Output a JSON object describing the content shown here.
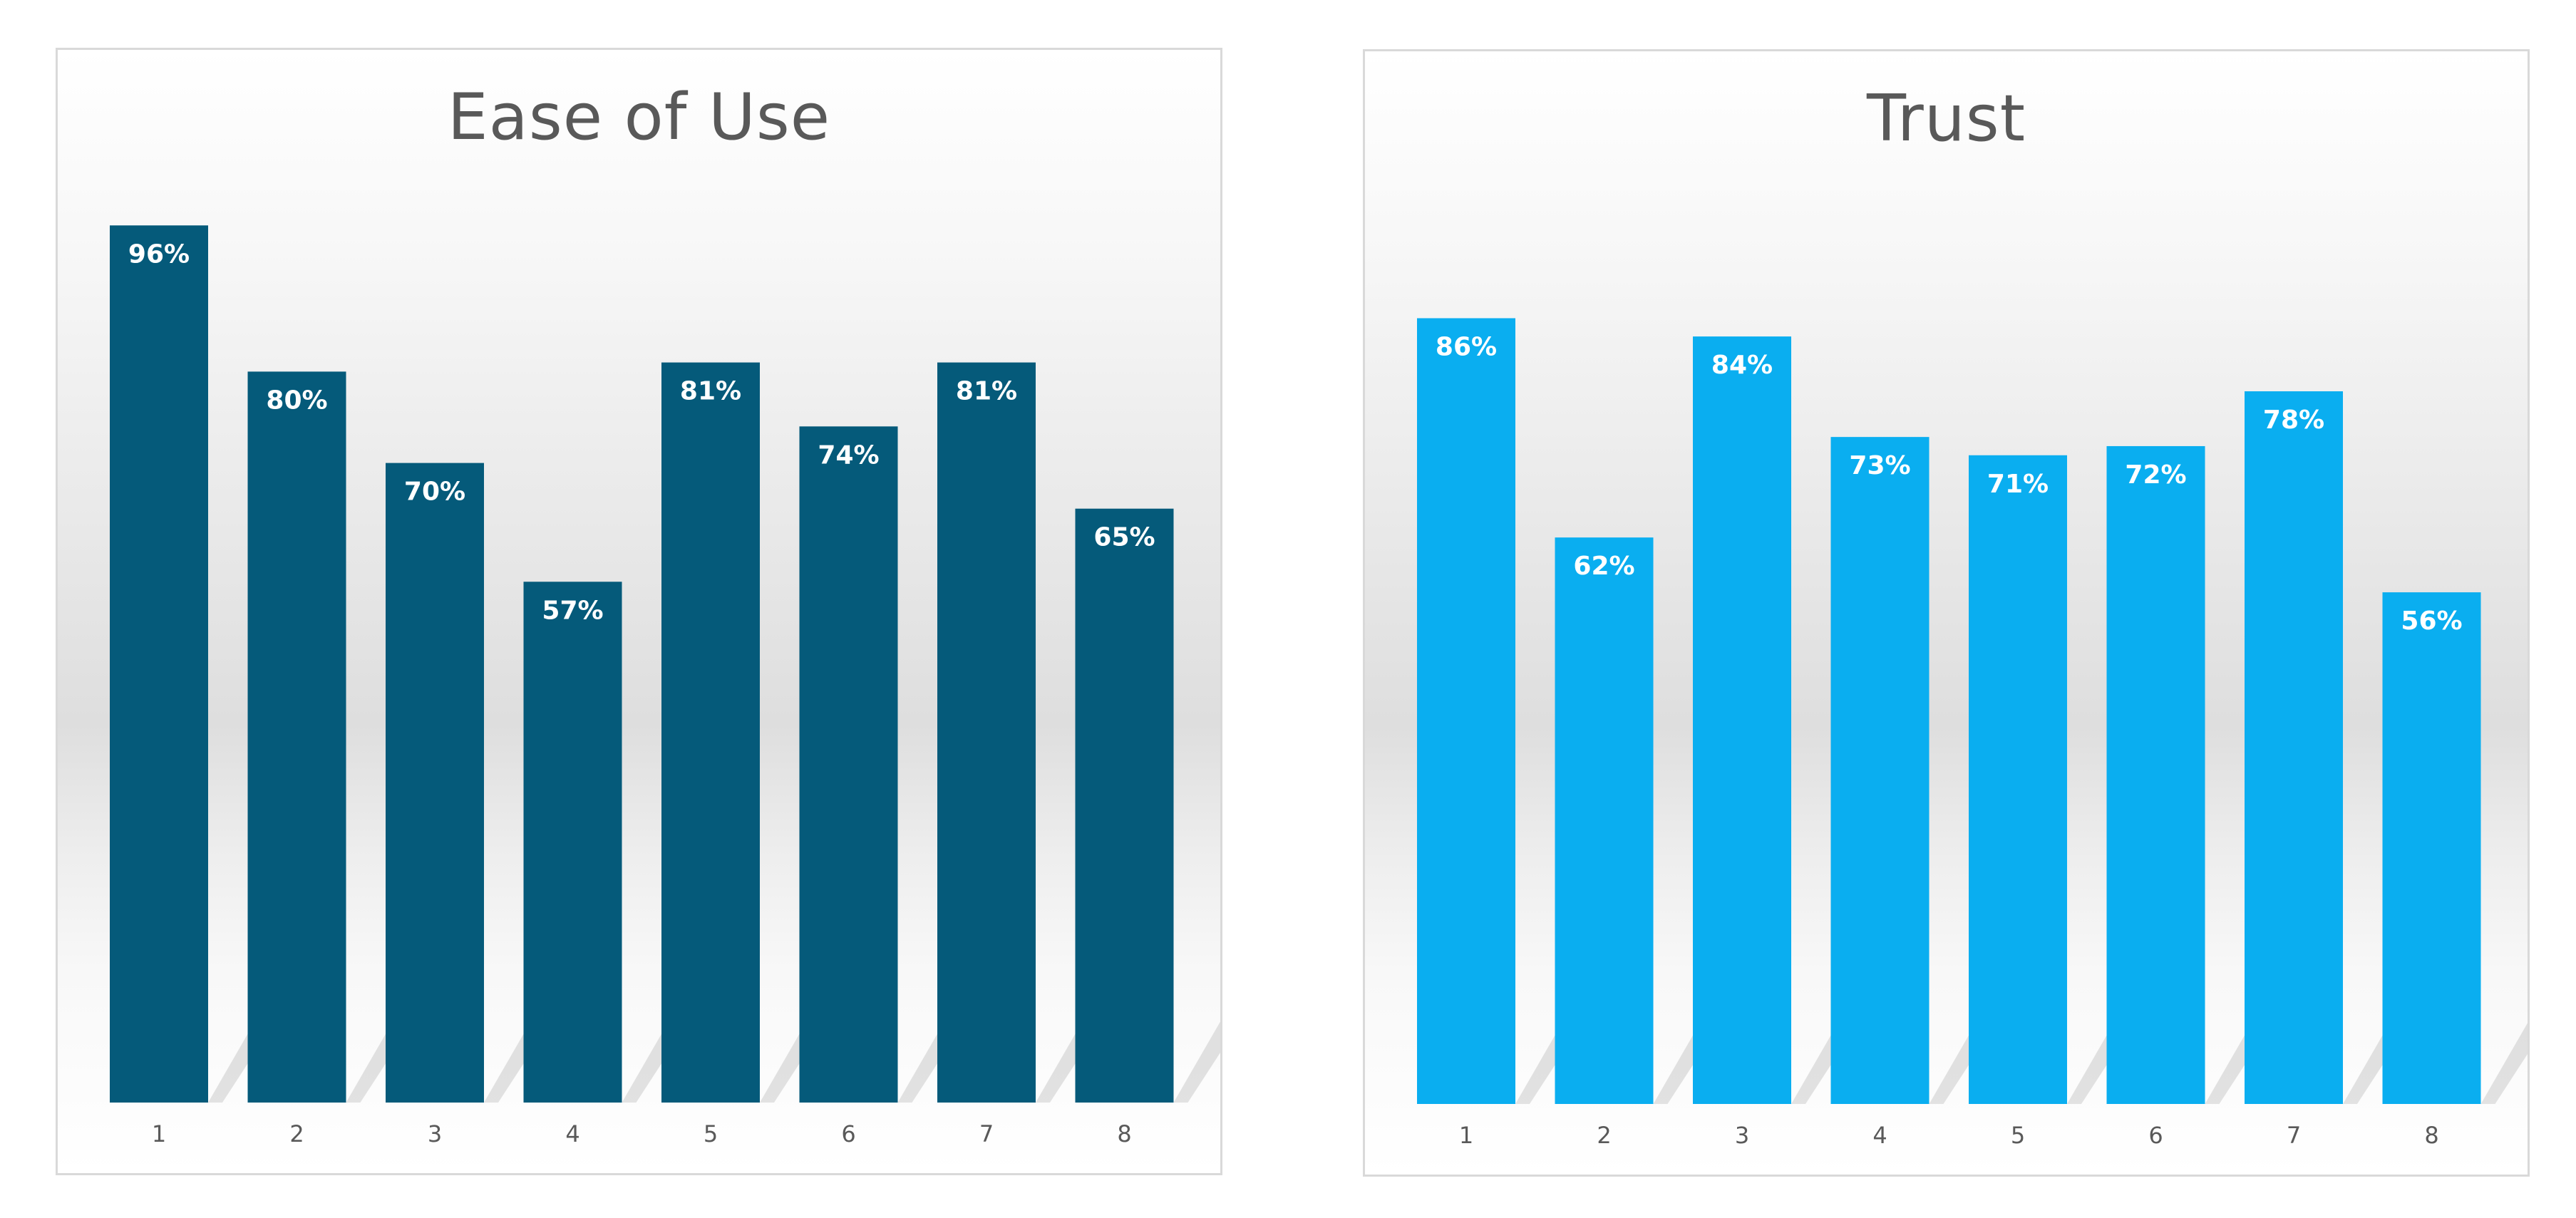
{
  "chart_data": [
    {
      "type": "bar",
      "title": "Ease of Use",
      "categories": [
        "1",
        "2",
        "3",
        "4",
        "5",
        "6",
        "7",
        "8"
      ],
      "values": [
        96,
        80,
        70,
        57,
        81,
        74,
        81,
        65
      ],
      "data_labels": [
        "96%",
        "80%",
        "70%",
        "57%",
        "81%",
        "74%",
        "81%",
        "65%"
      ],
      "ylim": [
        0,
        100
      ],
      "unit": "%",
      "color": "#055a7a",
      "grid": false,
      "legend": "none",
      "xlabel": "",
      "ylabel": ""
    },
    {
      "type": "bar",
      "title": "Trust",
      "categories": [
        "1",
        "2",
        "3",
        "4",
        "5",
        "6",
        "7",
        "8"
      ],
      "values": [
        86,
        62,
        84,
        73,
        71,
        72,
        78,
        56
      ],
      "data_labels": [
        "86%",
        "62%",
        "84%",
        "73%",
        "71%",
        "72%",
        "78%",
        "56%"
      ],
      "ylim": [
        0,
        100
      ],
      "unit": "%",
      "color": "#0aaef0",
      "grid": false,
      "legend": "none",
      "xlabel": "",
      "ylabel": ""
    }
  ]
}
